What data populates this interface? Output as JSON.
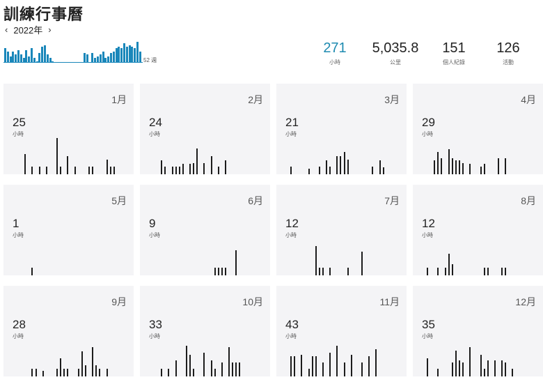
{
  "header": {
    "title": "訓練行事曆"
  },
  "year_nav": {
    "prev": "‹",
    "year": "2022年",
    "next": "›"
  },
  "weekly_chart": {
    "weeks_label": "52 週",
    "values": [
      9,
      7,
      4,
      7,
      5,
      8,
      5,
      3,
      8,
      4,
      9,
      3,
      1,
      6,
      10,
      11,
      5,
      3,
      1,
      0,
      0,
      0,
      0,
      0,
      0,
      0,
      0,
      0,
      0,
      0,
      6,
      5,
      0,
      6,
      3,
      4,
      5,
      7,
      3,
      4,
      6,
      7,
      9,
      10,
      9,
      12,
      10,
      11,
      10,
      9,
      13,
      7
    ]
  },
  "stats": [
    {
      "value": "271",
      "label": "小時"
    },
    {
      "value": "5,035.8",
      "label": "公里"
    },
    {
      "value": "151",
      "label": "個人紀錄"
    },
    {
      "value": "126",
      "label": "活動"
    }
  ],
  "months": [
    {
      "name": "1月",
      "hours": "25",
      "unit": "小時",
      "bars": [
        {
          "d": 3,
          "h": 0.55
        },
        {
          "d": 5,
          "h": 0.22
        },
        {
          "d": 7,
          "h": 0.22
        },
        {
          "d": 9,
          "h": 0.22
        },
        {
          "d": 12,
          "h": 1.0
        },
        {
          "d": 13,
          "h": 0.22
        },
        {
          "d": 15,
          "h": 0.5
        },
        {
          "d": 17,
          "h": 0.22
        },
        {
          "d": 21,
          "h": 0.22
        },
        {
          "d": 22,
          "h": 0.22
        },
        {
          "d": 26,
          "h": 0.4
        },
        {
          "d": 27,
          "h": 0.22
        },
        {
          "d": 28,
          "h": 0.22
        }
      ]
    },
    {
      "name": "2月",
      "hours": "24",
      "unit": "小時",
      "bars": [
        {
          "d": 3,
          "h": 0.38
        },
        {
          "d": 4,
          "h": 0.22
        },
        {
          "d": 6,
          "h": 0.22
        },
        {
          "d": 7,
          "h": 0.22
        },
        {
          "d": 8,
          "h": 0.22
        },
        {
          "d": 9,
          "h": 0.28
        },
        {
          "d": 11,
          "h": 0.28
        },
        {
          "d": 12,
          "h": 0.3
        },
        {
          "d": 13,
          "h": 0.72
        },
        {
          "d": 15,
          "h": 0.3
        },
        {
          "d": 17,
          "h": 0.5
        },
        {
          "d": 19,
          "h": 0.22
        },
        {
          "d": 21,
          "h": 0.38
        }
      ]
    },
    {
      "name": "3月",
      "hours": "21",
      "unit": "小時",
      "bars": [
        {
          "d": 1,
          "h": 0.22
        },
        {
          "d": 6,
          "h": 0.15
        },
        {
          "d": 9,
          "h": 0.22
        },
        {
          "d": 11,
          "h": 0.38
        },
        {
          "d": 12,
          "h": 0.22
        },
        {
          "d": 14,
          "h": 0.5
        },
        {
          "d": 15,
          "h": 0.5
        },
        {
          "d": 16,
          "h": 0.62
        },
        {
          "d": 17,
          "h": 0.4
        },
        {
          "d": 24,
          "h": 0.22
        },
        {
          "d": 26,
          "h": 0.38
        },
        {
          "d": 27,
          "h": 0.2
        }
      ]
    },
    {
      "name": "4月",
      "hours": "29",
      "unit": "小時",
      "bars": [
        {
          "d": 3,
          "h": 0.38
        },
        {
          "d": 4,
          "h": 0.62
        },
        {
          "d": 5,
          "h": 0.45
        },
        {
          "d": 7,
          "h": 0.7
        },
        {
          "d": 8,
          "h": 0.45
        },
        {
          "d": 9,
          "h": 0.38
        },
        {
          "d": 10,
          "h": 0.38
        },
        {
          "d": 11,
          "h": 0.3
        },
        {
          "d": 13,
          "h": 0.28
        },
        {
          "d": 16,
          "h": 0.22
        },
        {
          "d": 17,
          "h": 0.28
        },
        {
          "d": 21,
          "h": 0.45
        },
        {
          "d": 23,
          "h": 0.45
        }
      ]
    },
    {
      "name": "5月",
      "hours": "1",
      "unit": "小時",
      "bars": [
        {
          "d": 5,
          "h": 0.22
        }
      ]
    },
    {
      "name": "6月",
      "hours": "9",
      "unit": "小時",
      "bars": [
        {
          "d": 18,
          "h": 0.22
        },
        {
          "d": 19,
          "h": 0.22
        },
        {
          "d": 20,
          "h": 0.22
        },
        {
          "d": 21,
          "h": 0.22
        },
        {
          "d": 24,
          "h": 0.7
        }
      ]
    },
    {
      "name": "7月",
      "hours": "12",
      "unit": "小時",
      "bars": [
        {
          "d": 8,
          "h": 0.8
        },
        {
          "d": 9,
          "h": 0.22
        },
        {
          "d": 10,
          "h": 0.22
        },
        {
          "d": 12,
          "h": 0.22
        },
        {
          "d": 17,
          "h": 0.22
        },
        {
          "d": 21,
          "h": 0.65
        }
      ]
    },
    {
      "name": "8月",
      "hours": "12",
      "unit": "小時",
      "bars": [
        {
          "d": 1,
          "h": 0.22
        },
        {
          "d": 4,
          "h": 0.22
        },
        {
          "d": 6,
          "h": 0.22
        },
        {
          "d": 7,
          "h": 0.6
        },
        {
          "d": 8,
          "h": 0.3
        },
        {
          "d": 17,
          "h": 0.22
        },
        {
          "d": 18,
          "h": 0.22
        },
        {
          "d": 22,
          "h": 0.22
        },
        {
          "d": 23,
          "h": 0.22
        }
      ]
    },
    {
      "name": "9月",
      "hours": "28",
      "unit": "小時",
      "bars": [
        {
          "d": 5,
          "h": 0.22
        },
        {
          "d": 6,
          "h": 0.22
        },
        {
          "d": 8,
          "h": 0.15
        },
        {
          "d": 12,
          "h": 0.22
        },
        {
          "d": 13,
          "h": 0.5
        },
        {
          "d": 14,
          "h": 0.22
        },
        {
          "d": 15,
          "h": 0.22
        },
        {
          "d": 18,
          "h": 0.22
        },
        {
          "d": 19,
          "h": 0.7
        },
        {
          "d": 20,
          "h": 0.3
        },
        {
          "d": 22,
          "h": 0.8
        },
        {
          "d": 23,
          "h": 0.3
        },
        {
          "d": 24,
          "h": 0.22
        },
        {
          "d": 26,
          "h": 0.22
        }
      ]
    },
    {
      "name": "10月",
      "hours": "33",
      "unit": "小時",
      "bars": [
        {
          "d": 3,
          "h": 0.22
        },
        {
          "d": 5,
          "h": 0.22
        },
        {
          "d": 7,
          "h": 0.45
        },
        {
          "d": 10,
          "h": 0.85
        },
        {
          "d": 11,
          "h": 0.6
        },
        {
          "d": 12,
          "h": 0.22
        },
        {
          "d": 15,
          "h": 0.65
        },
        {
          "d": 17,
          "h": 0.45
        },
        {
          "d": 18,
          "h": 0.22
        },
        {
          "d": 20,
          "h": 0.38
        },
        {
          "d": 22,
          "h": 0.8
        },
        {
          "d": 23,
          "h": 0.38
        },
        {
          "d": 24,
          "h": 0.38
        },
        {
          "d": 25,
          "h": 0.38
        }
      ]
    },
    {
      "name": "11月",
      "hours": "43",
      "unit": "小時",
      "bars": [
        {
          "d": 1,
          "h": 0.55
        },
        {
          "d": 2,
          "h": 0.55
        },
        {
          "d": 4,
          "h": 0.6
        },
        {
          "d": 6,
          "h": 0.22
        },
        {
          "d": 7,
          "h": 0.55
        },
        {
          "d": 8,
          "h": 0.55
        },
        {
          "d": 10,
          "h": 0.38
        },
        {
          "d": 12,
          "h": 0.65
        },
        {
          "d": 14,
          "h": 0.85
        },
        {
          "d": 16,
          "h": 0.38
        },
        {
          "d": 18,
          "h": 0.6
        },
        {
          "d": 21,
          "h": 0.38
        },
        {
          "d": 23,
          "h": 0.55
        },
        {
          "d": 25,
          "h": 0.75
        }
      ]
    },
    {
      "name": "12月",
      "hours": "35",
      "unit": "小時",
      "bars": [
        {
          "d": 1,
          "h": 0.5
        },
        {
          "d": 4,
          "h": 0.22
        },
        {
          "d": 8,
          "h": 0.38
        },
        {
          "d": 9,
          "h": 0.72
        },
        {
          "d": 10,
          "h": 0.45
        },
        {
          "d": 11,
          "h": 0.38
        },
        {
          "d": 13,
          "h": 0.8
        },
        {
          "d": 16,
          "h": 0.6
        },
        {
          "d": 17,
          "h": 0.22
        },
        {
          "d": 18,
          "h": 0.45
        },
        {
          "d": 20,
          "h": 0.45
        },
        {
          "d": 22,
          "h": 0.45
        },
        {
          "d": 23,
          "h": 0.38
        },
        {
          "d": 25,
          "h": 0.22
        }
      ]
    }
  ],
  "colors": {
    "accent": "#1d8ab0",
    "bar_weekly": "#1a87ba",
    "bar_month": "#1c1c1c",
    "card_bg": "#f4f4f6"
  }
}
